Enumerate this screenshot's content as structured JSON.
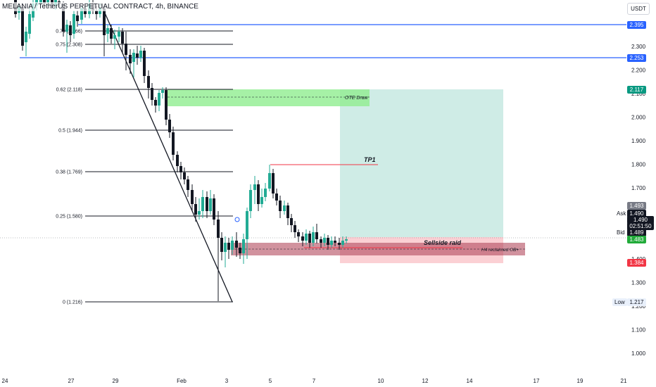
{
  "header": {
    "title": "MELANIA / TetherUS PERPETUAL CONTRACT, 4h, BINANCE",
    "currency": "USDT"
  },
  "price_axis": {
    "ticks": [
      "2.300",
      "2.200",
      "2.100",
      "2.000",
      "1.900",
      "1.800",
      "1.700",
      "1.600",
      "1.500",
      "1.400",
      "1.300",
      "1.200",
      "1.100",
      "1.000"
    ],
    "labels": {
      "top_line": "2.395",
      "mid_line": "2.253",
      "zone_top": "2.117",
      "gray": "1.493",
      "ask_label": "Ask",
      "ask": "1.490",
      "last": "1.490",
      "countdown": "02:51:50",
      "bid_label": "Bid",
      "bid": "1.489",
      "green": "1.483",
      "red": "1.384",
      "low_label": "Low",
      "low": "1.217"
    }
  },
  "time_axis": {
    "ticks": [
      "24",
      "27",
      "29",
      "Feb",
      "3",
      "5",
      "7",
      "10",
      "12",
      "14",
      "17",
      "19",
      "21"
    ]
  },
  "fib_levels": [
    {
      "label": "0.79 (2.366)"
    },
    {
      "label": "0.75 (2.308)"
    },
    {
      "label": "0.62 (2.118)"
    },
    {
      "label": "0.5 (1.944)"
    },
    {
      "label": "0.38 (1.769)"
    },
    {
      "label": "0.25 (1.580)"
    },
    {
      "label": "0 (1.216)"
    }
  ],
  "annotations": {
    "ote": "OTE Draw",
    "tp1": "TP1",
    "sellside": "Sellside raid",
    "h4ob": "H4 reclaimed OB+"
  },
  "colors": {
    "up": "#089981",
    "down": "#131722",
    "green_candle": "#22ab94",
    "fib_line": "#131722",
    "blue_line": "#2962ff",
    "red": "#f23645",
    "green_zone": "#90ee90",
    "tp_zone": "#a8dcd1",
    "sl_zone": "#f7a9b0",
    "ob_zone": "#b2495e"
  },
  "chart_data": {
    "type": "candlestick",
    "symbol": "MELANIA / TetherUS PERPETUAL CONTRACT",
    "timeframe": "4h",
    "exchange": "BINANCE",
    "y_range": [
      0.95,
      2.45
    ],
    "horizontal_levels": [
      2.395,
      2.253
    ],
    "fibonacci": [
      {
        "ratio": 0.79,
        "price": 2.366
      },
      {
        "ratio": 0.75,
        "price": 2.308
      },
      {
        "ratio": 0.62,
        "price": 2.118
      },
      {
        "ratio": 0.5,
        "price": 1.944
      },
      {
        "ratio": 0.38,
        "price": 1.769
      },
      {
        "ratio": 0.25,
        "price": 1.58
      },
      {
        "ratio": 0,
        "price": 1.216
      }
    ],
    "zones": [
      {
        "name": "OTE Draw",
        "from": 2.05,
        "to": 2.117
      },
      {
        "name": "TP zone",
        "from": 1.483,
        "to": 2.117
      },
      {
        "name": "SL zone",
        "from": 1.384,
        "to": 1.483
      },
      {
        "name": "H4 reclaimed OB+",
        "from": 1.41,
        "to": 1.46
      }
    ],
    "tp1": 1.8,
    "sellside_raid": 1.45,
    "low": 1.217,
    "last_price": 1.49
  }
}
